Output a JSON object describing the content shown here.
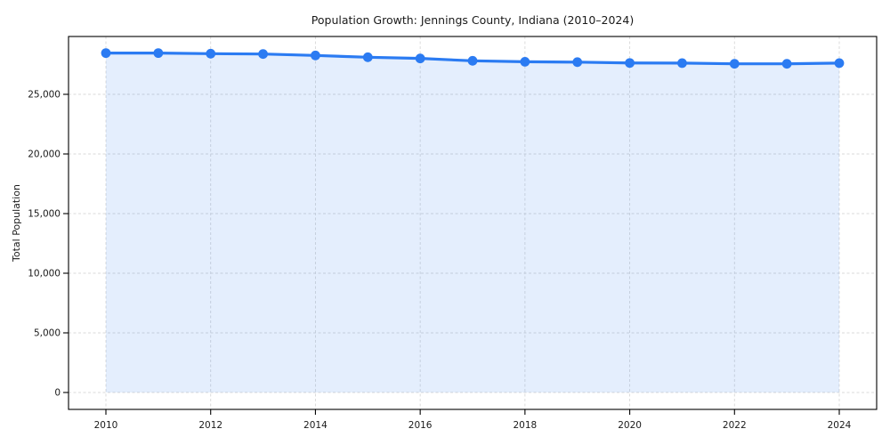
{
  "figure": {
    "title": "Population Growth: Jennings County, Indiana (2010–2024)",
    "y_axis_label": "Total Population"
  },
  "chart_data": {
    "type": "area",
    "title": "Population Growth: Jennings County, Indiana (2010–2024)",
    "xlabel": "",
    "ylabel": "Total Population",
    "x": [
      2010,
      2011,
      2012,
      2013,
      2014,
      2015,
      2016,
      2017,
      2018,
      2019,
      2020,
      2021,
      2022,
      2023,
      2024
    ],
    "series": [
      {
        "name": "Total Population",
        "values": [
          28460,
          28460,
          28410,
          28380,
          28260,
          28110,
          28010,
          27810,
          27730,
          27700,
          27630,
          27620,
          27560,
          27560,
          27620
        ]
      }
    ],
    "ylim": [
      0,
      29850
    ],
    "grid": "dashed-both-axes",
    "legend": "none",
    "y_ticks": [
      {
        "value": 0,
        "label": "0"
      },
      {
        "value": 5000,
        "label": "5,000"
      },
      {
        "value": 10000,
        "label": "10,000"
      },
      {
        "value": 15000,
        "label": "15,000"
      },
      {
        "value": 20000,
        "label": "20,000"
      },
      {
        "value": 25000,
        "label": "25,000"
      }
    ],
    "x_ticks": [
      {
        "value": 2010,
        "label": "2010"
      },
      {
        "value": 2012,
        "label": "2012"
      },
      {
        "value": 2014,
        "label": "2014"
      },
      {
        "value": 2016,
        "label": "2016"
      },
      {
        "value": 2018,
        "label": "2018"
      },
      {
        "value": 2020,
        "label": "2020"
      },
      {
        "value": 2022,
        "label": "2022"
      },
      {
        "value": 2024,
        "label": "2024"
      }
    ],
    "colors": {
      "line": "#2b7bf2",
      "marker": "#2b7bf2",
      "fill": "rgba(43,123,242,0.13)",
      "grid": "#d8d8d8",
      "spine": "#000000",
      "tick_text": "#1a1a1a",
      "background": "#ffffff"
    }
  }
}
